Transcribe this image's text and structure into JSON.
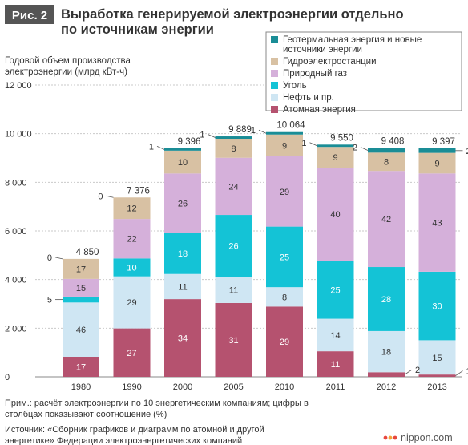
{
  "figure": {
    "badge": "Рис. 2",
    "title_line1": "Выработка генерируемой электроэнергии отдельно",
    "title_line2": "по источникам энергии"
  },
  "chart_data": {
    "type": "bar",
    "stacked": true,
    "ylabel_line1": "Годовой объем производства",
    "ylabel_line2": "электроэнергии (млрд кВт-ч)",
    "ylim": [
      0,
      12000
    ],
    "yticks": [
      0,
      2000,
      4000,
      6000,
      8000,
      10000,
      12000
    ],
    "ytick_labels": [
      "0",
      "2 000",
      "4 000",
      "6 000",
      "8 000",
      "10 000",
      "12 000"
    ],
    "grid": true,
    "legend_position": "top-right",
    "categories": [
      "1980",
      "1990",
      "2000",
      "2005",
      "2010",
      "2011",
      "2012",
      "2013"
    ],
    "totals": [
      4850,
      7376,
      9396,
      9889,
      10064,
      9550,
      9408,
      9397
    ],
    "total_labels": [
      "4 850",
      "7 376",
      "9 396",
      "9 889",
      "10 064",
      "9 550",
      "9 408",
      "9 397"
    ],
    "series": [
      {
        "name": "Атомная энергия",
        "color": "#b5526f",
        "percent": [
          17,
          27,
          34,
          31,
          29,
          11,
          2,
          1
        ]
      },
      {
        "name": "Нефть и пр.",
        "color": "#cfe6f3",
        "percent": [
          46,
          29,
          11,
          11,
          8,
          14,
          18,
          15
        ]
      },
      {
        "name": "Уголь",
        "color": "#14c3d6",
        "percent": [
          5,
          10,
          18,
          26,
          25,
          25,
          28,
          30
        ]
      },
      {
        "name": "Природный газ",
        "color": "#d5b0da",
        "percent": [
          15,
          22,
          26,
          24,
          29,
          40,
          42,
          43
        ]
      },
      {
        "name": "Гидроэлектростанции",
        "color": "#d8c1a3",
        "percent": [
          17,
          12,
          10,
          8,
          9,
          9,
          8,
          9
        ]
      },
      {
        "name": "Геотермальная энергия и новые источники энергии",
        "color": "#1a8d96",
        "percent": [
          0,
          0,
          1,
          1,
          1,
          1,
          2,
          2
        ]
      }
    ],
    "legend_lines": [
      [
        "Геотермальная энергия и новые",
        "источники энергии"
      ],
      [
        "Гидроэлектростанции"
      ],
      [
        "Природный газ"
      ],
      [
        "Уголь"
      ],
      [
        "Нефть и пр."
      ],
      [
        "Атомная энергия"
      ]
    ]
  },
  "notes": {
    "note_line1": "Прим.: расчёт электроэнергии по 10 энергетическим компаниям; цифры в",
    "note_line2": "столбцах показывают соотношение (%)",
    "source_line1": "Источник: «Сборник графиков и диаграмм по атомной и другой",
    "source_line2": "энергетике» Федерации электроэнергетических компаний",
    "brand": "nippon.com",
    "brand_colors": [
      "#e8473d",
      "#f4a33a",
      "#e8473d"
    ]
  }
}
